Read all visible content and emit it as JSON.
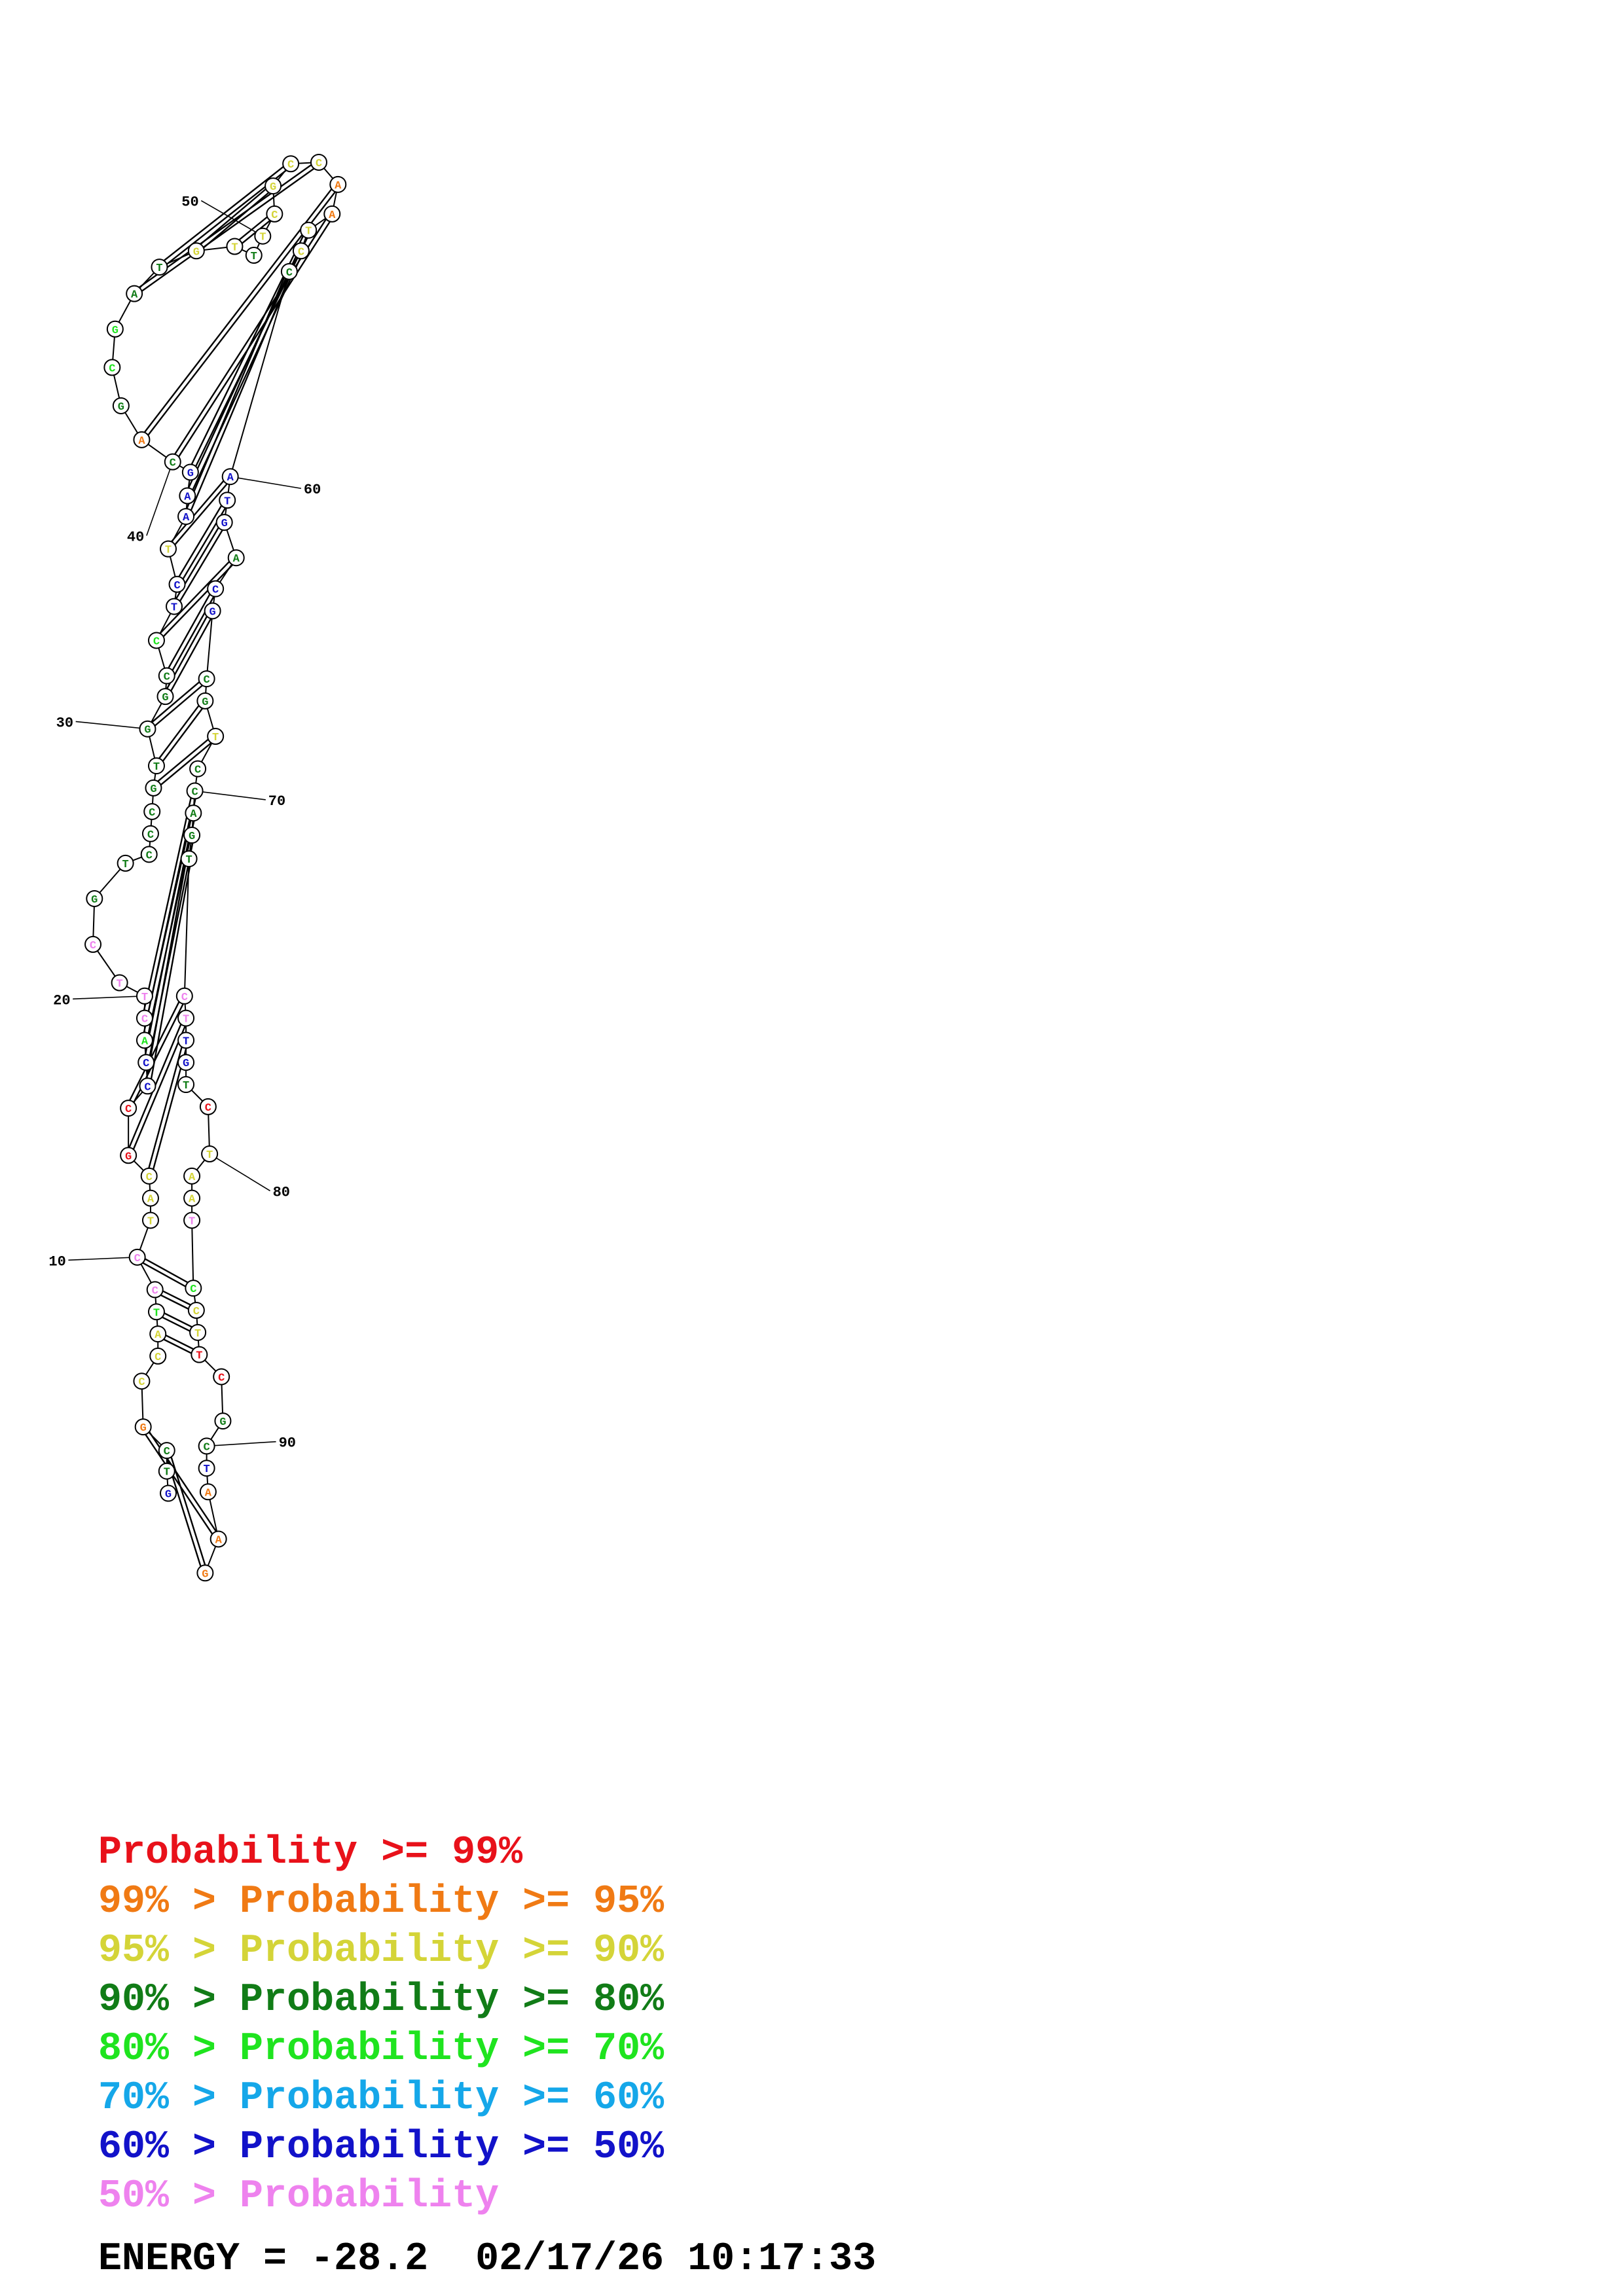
{
  "sequence": "GTCGCCATCCTACGCCCACTTCGTCCCGTGGCCTCTAAGCAGCGATGTTTCGCCAATCCATGACGCGTCCAGTCTTGTCTAATCCTTCGCTAAGTAC",
  "pairs": [
    [
      2,
      95
    ],
    [
      3,
      94
    ],
    [
      4,
      93
    ],
    [
      7,
      87
    ],
    [
      8,
      86
    ],
    [
      9,
      85
    ],
    [
      10,
      84
    ],
    [
      13,
      76
    ],
    [
      14,
      75
    ],
    [
      15,
      74
    ],
    [
      16,
      73
    ],
    [
      17,
      72
    ],
    [
      18,
      71
    ],
    [
      19,
      70
    ],
    [
      28,
      68
    ],
    [
      29,
      67
    ],
    [
      30,
      66
    ],
    [
      31,
      65
    ],
    [
      32,
      64
    ],
    [
      33,
      63
    ],
    [
      34,
      62
    ],
    [
      35,
      61
    ],
    [
      36,
      60
    ],
    [
      37,
      59
    ],
    [
      38,
      58
    ],
    [
      39,
      57
    ],
    [
      40,
      56
    ],
    [
      41,
      55
    ],
    [
      45,
      54
    ],
    [
      46,
      53
    ],
    [
      47,
      52
    ],
    [
      48,
      51
    ]
  ],
  "color_classes": {
    "p99": "#e8111a",
    "p95": "#f07a14",
    "p90": "#d4d438",
    "p80": "#117c17",
    "p70": "#1fe41f",
    "p60": "#15a7e9",
    "p50": "#1212c9",
    "lt50": "#ee82ee"
  },
  "number_labels": [
    "10",
    "20",
    "30",
    "40",
    "50",
    "60",
    "70",
    "80",
    "90"
  ],
  "legend": [
    {
      "prefix": "",
      "text": "Probability >= 99%",
      "color": "#e8111a"
    },
    {
      "prefix": "99% > ",
      "text": "Probability >= 95%",
      "color": "#f07a14"
    },
    {
      "prefix": "95% > ",
      "text": "Probability >= 90%",
      "color": "#d4d438"
    },
    {
      "prefix": "90% > ",
      "text": "Probability >= 80%",
      "color": "#117c17"
    },
    {
      "prefix": "80% > ",
      "text": "Probability >= 70%",
      "color": "#1fe41f"
    },
    {
      "prefix": "70% > ",
      "text": "Probability >= 60%",
      "color": "#15a7e9"
    },
    {
      "prefix": "60% > ",
      "text": "Probability >= 50%",
      "color": "#1212c9"
    },
    {
      "prefix": "50% > ",
      "text": "Probability",
      "color": "#ee82ee"
    }
  ],
  "energy_text": "ENERGY = -28.2  02/17/26 10:17:33"
}
